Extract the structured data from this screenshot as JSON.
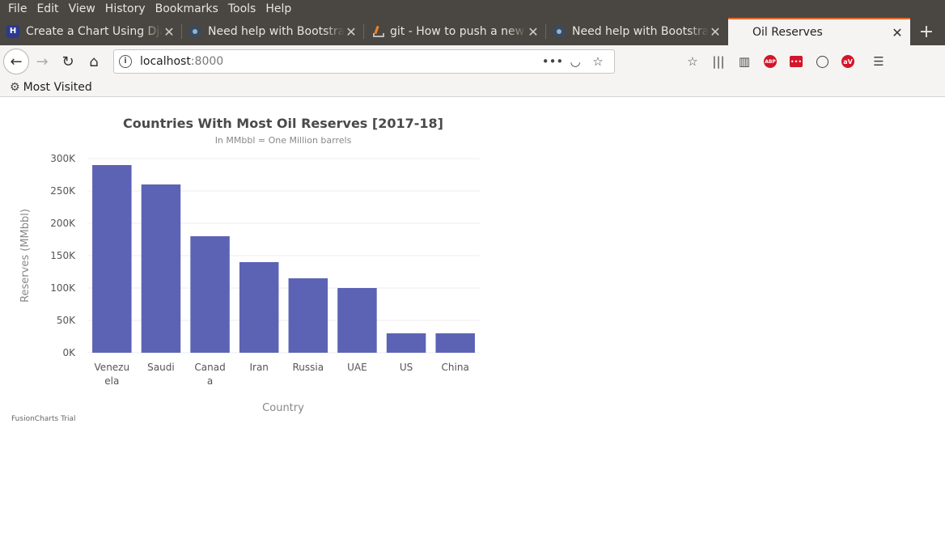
{
  "menu": [
    "File",
    "Edit",
    "View",
    "History",
    "Bookmarks",
    "Tools",
    "Help"
  ],
  "tabs": [
    {
      "title": "Create a Chart Using Django",
      "icon": "fusioncharts-favicon-icon",
      "active": false
    },
    {
      "title": "Need help with Bootstrap",
      "icon": "bootstrap-favicon-icon",
      "active": false
    },
    {
      "title": "git - How to push a new initial",
      "icon": "stackoverflow-favicon-icon",
      "active": false
    },
    {
      "title": "Need help with Bootstrap",
      "icon": "bootstrap-favicon-icon",
      "active": false
    },
    {
      "title": "Oil Reserves",
      "icon": "",
      "active": true
    }
  ],
  "nav": {
    "url_host": "localhost",
    "url_port": ":8000"
  },
  "bookmarks": {
    "label": "Most Visited"
  },
  "footer": {
    "trial_label": "FusionCharts Trial"
  },
  "colors": {
    "bar": "#5c63b5",
    "accent_tab": "#e66a2b"
  },
  "chart_data": {
    "type": "bar",
    "title": "Countries With Most Oil Reserves [2017-18]",
    "subtitle": "In MMbbl = One Million barrels",
    "xlabel": "Country",
    "ylabel": "Reserves (MMbbl)",
    "categories": [
      "Venezuela",
      "Saudi",
      "Canada",
      "Iran",
      "Russia",
      "UAE",
      "US",
      "China"
    ],
    "category_lines": [
      [
        "Venezu",
        "ela"
      ],
      [
        "Saudi"
      ],
      [
        "Canad",
        "a"
      ],
      [
        "Iran"
      ],
      [
        "Russia"
      ],
      [
        "UAE"
      ],
      [
        "US"
      ],
      [
        "China"
      ]
    ],
    "values": [
      290000,
      260000,
      180000,
      140000,
      115000,
      100000,
      30000,
      30000
    ],
    "ylim": [
      0,
      300000
    ],
    "yticks": [
      0,
      50000,
      100000,
      150000,
      200000,
      250000,
      300000
    ],
    "ytick_labels": [
      "0K",
      "50K",
      "100K",
      "150K",
      "200K",
      "250K",
      "300K"
    ],
    "grid": true
  }
}
